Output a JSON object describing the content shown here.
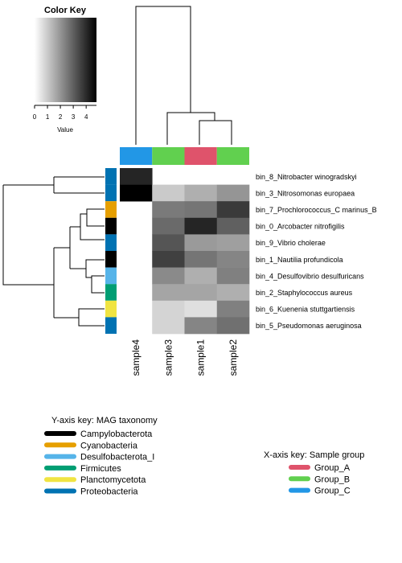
{
  "color_key": {
    "title": "Color Key",
    "ticks": [
      "0",
      "1",
      "2",
      "3",
      "4"
    ],
    "tick_values": [
      0,
      1,
      2,
      3,
      4
    ],
    "range": [
      0,
      4.8
    ],
    "xlabel": "Value"
  },
  "legends": {
    "y": {
      "title": "Y-axis key: MAG taxonomy",
      "items": [
        {
          "label": "Campylobacterota",
          "color": "#000000"
        },
        {
          "label": "Cyanobacteria",
          "color": "#E69F00"
        },
        {
          "label": "Desulfobacterota_I",
          "color": "#56B4E9"
        },
        {
          "label": "Firmicutes",
          "color": "#009E73"
        },
        {
          "label": "Planctomycetota",
          "color": "#F0E442"
        },
        {
          "label": "Proteobacteria",
          "color": "#0072B2"
        }
      ]
    },
    "x": {
      "title": "X-axis key: Sample group",
      "items": [
        {
          "label": "Group_A",
          "color": "#DF536B"
        },
        {
          "label": "Group_B",
          "color": "#61D04F"
        },
        {
          "label": "Group_C",
          "color": "#2297E6"
        }
      ]
    }
  },
  "chart_data": {
    "type": "heatmap",
    "columns": [
      "sample4",
      "sample3",
      "sample1",
      "sample2"
    ],
    "column_groups": [
      "Group_C",
      "Group_B",
      "Group_A",
      "Group_B"
    ],
    "rows": [
      "bin_8_Nitrobacter winogradskyi",
      "bin_3_Nitrosomonas europaea",
      "bin_7_Prochlorococcus_C marinus_B",
      "bin_0_Arcobacter nitrofigilis",
      "bin_9_Vibrio cholerae",
      "bin_1_Nautilia profundicola",
      "bin_4_Desulfovibrio desulfuricans",
      "bin_2_Staphylococcus aureus",
      "bin_6_Kuenenia stuttgartiensis",
      "bin_5_Pseudomonas aeruginosa"
    ],
    "row_taxonomy": [
      "Proteobacteria",
      "Proteobacteria",
      "Cyanobacteria",
      "Campylobacterota",
      "Proteobacteria",
      "Campylobacterota",
      "Desulfobacterota_I",
      "Firmicutes",
      "Planctomycetota",
      "Proteobacteria"
    ],
    "values": [
      [
        4.1,
        null,
        null,
        null
      ],
      [
        4.8,
        1.0,
        1.5,
        2.0
      ],
      [
        null,
        2.5,
        2.6,
        3.7
      ],
      [
        null,
        2.8,
        4.1,
        3.0
      ],
      [
        null,
        3.2,
        1.9,
        1.8
      ],
      [
        null,
        3.6,
        2.6,
        2.3
      ],
      [
        null,
        2.2,
        1.5,
        2.4
      ],
      [
        null,
        1.7,
        1.7,
        1.5
      ],
      [
        null,
        0.8,
        0.6,
        2.4
      ],
      [
        null,
        0.8,
        2.3,
        2.7
      ]
    ],
    "value_range": [
      0,
      4.8
    ],
    "legend_placement": "top-left"
  }
}
